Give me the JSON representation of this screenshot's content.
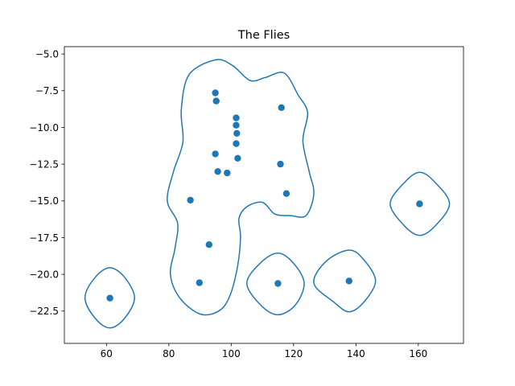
{
  "chart_data": {
    "type": "scatter",
    "title": "The Flies",
    "xlabel": "",
    "ylabel": "",
    "xlim": [
      46.5,
      174.5
    ],
    "ylim": [
      -24.7,
      -4.5
    ],
    "xticks": [
      60,
      80,
      100,
      120,
      140,
      160
    ],
    "yticks": [
      -5.0,
      -7.5,
      -10.0,
      -12.5,
      -15.0,
      -17.5,
      -20.0,
      -22.5
    ],
    "xtick_labels": [
      "60",
      "80",
      "100",
      "120",
      "140",
      "160"
    ],
    "ytick_labels": [
      "−5.0",
      "−7.5",
      "−10.0",
      "−12.5",
      "−15.0",
      "−17.5",
      "−20.0",
      "−22.5"
    ],
    "grid": false,
    "color": "#1f77b4",
    "points": [
      {
        "x": 94.9,
        "y": -7.65
      },
      {
        "x": 95.2,
        "y": -8.2
      },
      {
        "x": 101.6,
        "y": -9.35
      },
      {
        "x": 101.6,
        "y": -9.85
      },
      {
        "x": 101.8,
        "y": -10.4
      },
      {
        "x": 101.6,
        "y": -11.1
      },
      {
        "x": 116.1,
        "y": -8.65
      },
      {
        "x": 94.9,
        "y": -11.8
      },
      {
        "x": 102.1,
        "y": -12.1
      },
      {
        "x": 95.7,
        "y": -13.0
      },
      {
        "x": 98.7,
        "y": -13.1
      },
      {
        "x": 115.8,
        "y": -12.5
      },
      {
        "x": 117.7,
        "y": -14.5
      },
      {
        "x": 86.9,
        "y": -14.95
      },
      {
        "x": 92.9,
        "y": -17.98
      },
      {
        "x": 89.8,
        "y": -20.57
      },
      {
        "x": 115.0,
        "y": -20.62
      },
      {
        "x": 137.8,
        "y": -20.45
      },
      {
        "x": 61.1,
        "y": -21.62
      },
      {
        "x": 160.4,
        "y": -15.2
      }
    ],
    "contours": [
      [
        [
          61.1,
          -19.55
        ],
        [
          65.8,
          -20.2
        ],
        [
          69.0,
          -21.6
        ],
        [
          65.8,
          -23.0
        ],
        [
          61.1,
          -23.65
        ],
        [
          56.4,
          -23.0
        ],
        [
          53.1,
          -21.6
        ],
        [
          56.4,
          -20.2
        ]
      ],
      [
        [
          160.5,
          -13.05
        ],
        [
          165.2,
          -13.7
        ],
        [
          170.0,
          -15.2
        ],
        [
          165.2,
          -16.75
        ],
        [
          160.5,
          -17.35
        ],
        [
          155.8,
          -16.75
        ],
        [
          151.0,
          -15.2
        ],
        [
          155.8,
          -13.7
        ]
      ],
      [
        [
          115.0,
          -18.55
        ],
        [
          119.8,
          -19.2
        ],
        [
          123.4,
          -20.6
        ],
        [
          120.5,
          -22.1
        ],
        [
          115.0,
          -22.75
        ],
        [
          109.5,
          -22.1
        ],
        [
          105.0,
          -20.6
        ],
        [
          109.5,
          -19.2
        ]
      ],
      [
        [
          137.8,
          -18.35
        ],
        [
          142.5,
          -19.0
        ],
        [
          146.3,
          -20.45
        ],
        [
          142.5,
          -21.9
        ],
        [
          137.8,
          -22.55
        ],
        [
          133.0,
          -21.9
        ],
        [
          126.5,
          -20.6
        ],
        [
          130.5,
          -19.1
        ]
      ],
      [
        [
          95.0,
          -5.4
        ],
        [
          100.5,
          -5.8
        ],
        [
          106.0,
          -6.8
        ],
        [
          111.0,
          -6.6
        ],
        [
          117.0,
          -6.3
        ],
        [
          121.5,
          -7.8
        ],
        [
          124.5,
          -9.0
        ],
        [
          123.0,
          -10.9
        ],
        [
          125.0,
          -13.0
        ],
        [
          126.5,
          -14.5
        ],
        [
          124.0,
          -16.0
        ],
        [
          119.0,
          -16.0
        ],
        [
          114.0,
          -15.9
        ],
        [
          110.0,
          -15.1
        ],
        [
          105.0,
          -15.4
        ],
        [
          102.5,
          -16.2
        ],
        [
          103.0,
          -17.5
        ],
        [
          102.0,
          -19.5
        ],
        [
          99.5,
          -21.5
        ],
        [
          96.0,
          -22.5
        ],
        [
          90.0,
          -22.7
        ],
        [
          83.5,
          -21.6
        ],
        [
          80.5,
          -20.0
        ],
        [
          82.0,
          -18.2
        ],
        [
          82.8,
          -16.5
        ],
        [
          79.5,
          -15.0
        ],
        [
          81.5,
          -13.0
        ],
        [
          84.5,
          -11.0
        ],
        [
          84.0,
          -8.8
        ],
        [
          86.5,
          -6.4
        ]
      ]
    ]
  }
}
